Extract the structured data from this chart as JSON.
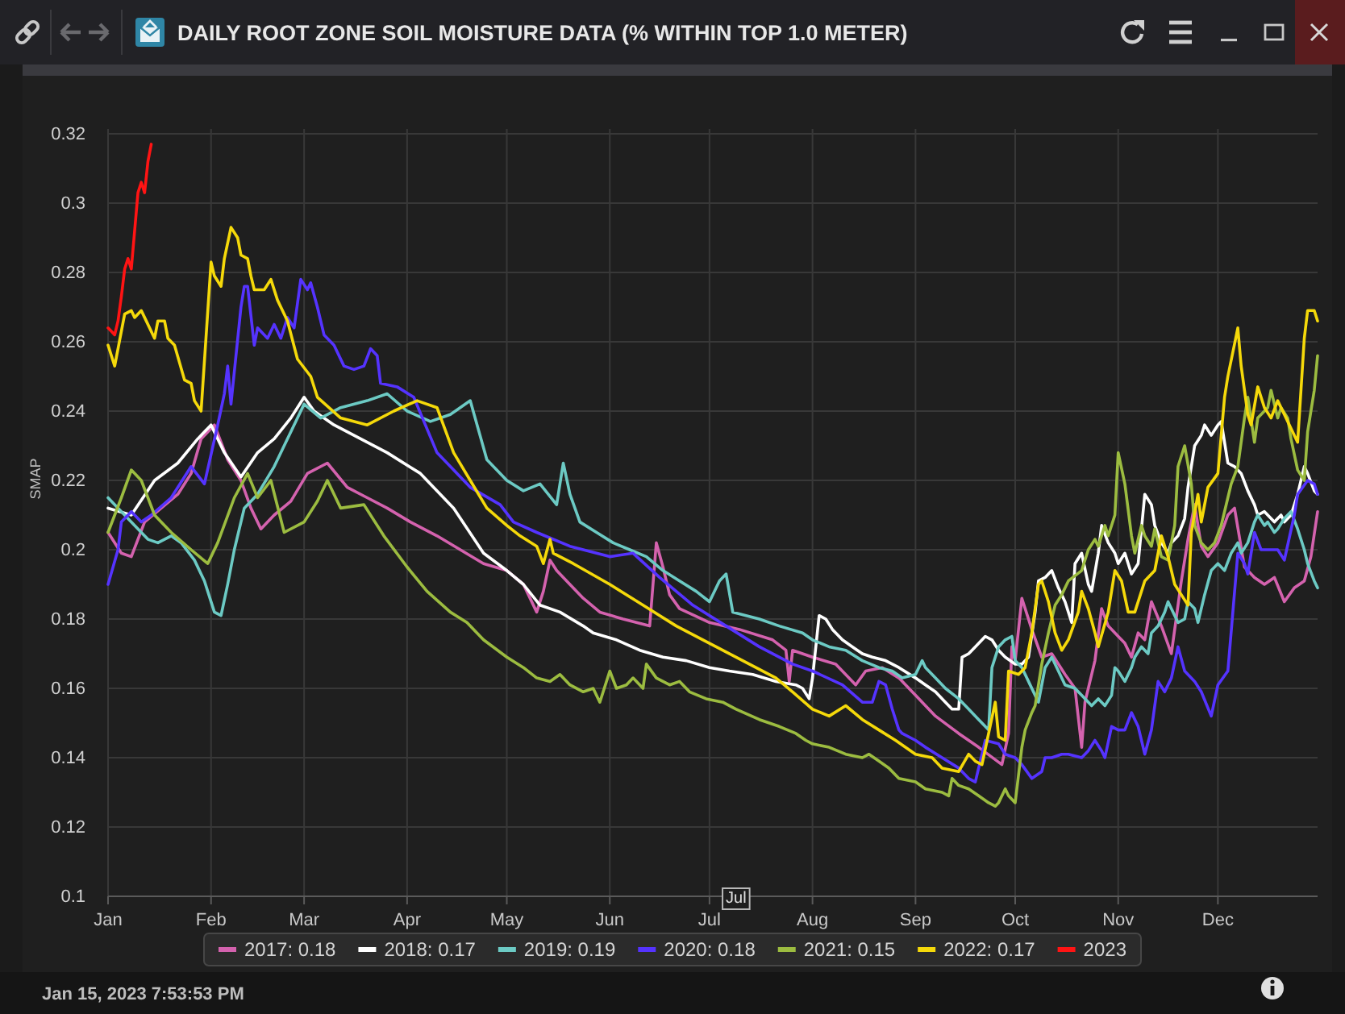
{
  "chart_data": {
    "type": "line",
    "title": "DAILY ROOT ZONE SOIL MOISTURE DATA (% WITHIN TOP 1.0 METER)",
    "ylabel": "SMAP",
    "annotations": [
      {
        "text": "Jul",
        "x": "--07-09"
      },
      "Jan 15, 2023 7:53:53 PM"
    ],
    "xlim": [
      "--01-01",
      "--12-31"
    ],
    "xticks": [
      {
        "value": "--01-01",
        "label": "Jan"
      },
      {
        "value": "--02-01",
        "label": "Feb"
      },
      {
        "value": "--03-01",
        "label": "Mar"
      },
      {
        "value": "--04-01",
        "label": "Apr"
      },
      {
        "value": "--05-01",
        "label": "May"
      },
      {
        "value": "--06-01",
        "label": "Jun"
      },
      {
        "value": "--07-01",
        "label": "Jul"
      },
      {
        "value": "--08-01",
        "label": "Aug"
      },
      {
        "value": "--09-01",
        "label": "Sep"
      },
      {
        "value": "--10-01",
        "label": "Oct"
      },
      {
        "value": "--11-01",
        "label": "Nov"
      },
      {
        "value": "--12-01",
        "label": "Dec"
      }
    ],
    "ylim": [
      0.1,
      0.32
    ],
    "yticks": [
      0.1,
      0.12,
      0.14,
      0.16,
      0.18,
      0.2,
      0.22,
      0.24,
      0.26,
      0.28,
      0.3,
      0.32
    ],
    "grid": true,
    "legend": "bottom",
    "series": [
      {
        "name": "2017: 0.18",
        "color": "#d462ae",
        "x": [
          "--01-01",
          "--01-05",
          "--01-08",
          "--01-12",
          "--01-17",
          "--01-22",
          "--01-26",
          "--01-29",
          "--02-02",
          "--02-06",
          "--02-10",
          "--02-13",
          "--02-16",
          "--02-20",
          "--02-25",
          "--03-02",
          "--03-08",
          "--03-14",
          "--03-20",
          "--03-26",
          "--04-02",
          "--04-10",
          "--04-17",
          "--04-24",
          "--05-01",
          "--05-06",
          "--05-10",
          "--05-12",
          "--05-14",
          "--05-16",
          "--05-19",
          "--05-24",
          "--05-29",
          "--06-05",
          "--06-13",
          "--06-15",
          "--06-17",
          "--06-19",
          "--06-22",
          "--07-01",
          "--07-10",
          "--07-20",
          "--07-24",
          "--07-25",
          "--07-26",
          "--08-01",
          "--08-08",
          "--08-14",
          "--08-17",
          "--08-22",
          "--08-27",
          "--09-01",
          "--09-07",
          "--09-14",
          "--09-20",
          "--09-27",
          "--09-29",
          "--09-30",
          "--10-01",
          "--10-03",
          "--10-06",
          "--10-09",
          "--10-12",
          "--10-16",
          "--10-19",
          "--10-21",
          "--10-22",
          "--10-25",
          "--10-27",
          "--10-29",
          "--11-01",
          "--11-03",
          "--11-05",
          "--11-07",
          "--11-09",
          "--11-11",
          "--11-14",
          "--11-17",
          "--11-20",
          "--11-22",
          "--11-24",
          "--11-26",
          "--11-28",
          "--12-01",
          "--12-04",
          "--12-06",
          "--12-09",
          "--12-12",
          "--12-15",
          "--12-18",
          "--12-21",
          "--12-24",
          "--12-27",
          "--12-29",
          "--12-31"
        ],
        "values": [
          0.205,
          0.199,
          0.198,
          0.208,
          0.212,
          0.216,
          0.222,
          0.232,
          0.236,
          0.226,
          0.22,
          0.212,
          0.206,
          0.21,
          0.214,
          0.222,
          0.225,
          0.218,
          0.215,
          0.212,
          0.208,
          0.204,
          0.2,
          0.196,
          0.194,
          0.19,
          0.182,
          0.188,
          0.197,
          0.194,
          0.191,
          0.186,
          0.182,
          0.18,
          0.178,
          0.202,
          0.195,
          0.187,
          0.183,
          0.179,
          0.177,
          0.174,
          0.171,
          0.162,
          0.171,
          0.169,
          0.167,
          0.161,
          0.165,
          0.166,
          0.163,
          0.158,
          0.152,
          0.147,
          0.143,
          0.138,
          0.147,
          0.172,
          0.168,
          0.186,
          0.177,
          0.169,
          0.17,
          0.164,
          0.16,
          0.143,
          0.156,
          0.168,
          0.183,
          0.178,
          0.175,
          0.173,
          0.169,
          0.176,
          0.174,
          0.185,
          0.178,
          0.17,
          0.191,
          0.203,
          0.213,
          0.201,
          0.198,
          0.202,
          0.21,
          0.212,
          0.195,
          0.192,
          0.19,
          0.192,
          0.185,
          0.189,
          0.191,
          0.198,
          0.211
        ]
      },
      {
        "name": "2018: 0.17",
        "color": "#ffffff",
        "x": [
          "--01-01",
          "--01-08",
          "--01-15",
          "--01-22",
          "--01-28",
          "--02-01",
          "--02-05",
          "--02-10",
          "--02-15",
          "--02-20",
          "--02-25",
          "--03-01",
          "--03-04",
          "--03-10",
          "--03-18",
          "--03-26",
          "--04-05",
          "--04-15",
          "--04-24",
          "--05-01",
          "--05-06",
          "--05-11",
          "--05-17",
          "--05-24",
          "--05-27",
          "--06-03",
          "--06-10",
          "--06-17",
          "--06-24",
          "--07-01",
          "--07-07",
          "--07-14",
          "--07-21",
          "--07-27",
          "--07-29",
          "--07-31",
          "--08-01",
          "--08-03",
          "--08-05",
          "--08-07",
          "--08-10",
          "--08-13",
          "--08-16",
          "--08-19",
          "--08-23",
          "--08-27",
          "--09-01",
          "--09-04",
          "--09-07",
          "--09-10",
          "--09-12",
          "--09-14",
          "--09-15",
          "--09-17",
          "--09-19",
          "--09-22",
          "--09-24",
          "--09-26",
          "--09-28",
          "--10-01",
          "--10-03",
          "--10-05",
          "--10-07",
          "--10-08",
          "--10-10",
          "--10-12",
          "--10-14",
          "--10-16",
          "--10-18",
          "--10-19",
          "--10-21",
          "--10-23",
          "--10-24",
          "--10-26",
          "--10-27",
          "--10-29",
          "--10-31",
          "--11-01",
          "--11-03",
          "--11-05",
          "--11-07",
          "--11-09",
          "--11-11",
          "--11-12",
          "--11-14",
          "--11-16",
          "--11-17",
          "--11-19",
          "--11-21",
          "--11-22",
          "--11-24",
          "--11-26",
          "--11-27",
          "--11-29",
          "--12-01",
          "--12-02",
          "--12-04",
          "--12-06",
          "--12-08",
          "--12-10",
          "--12-12",
          "--12-13",
          "--12-15",
          "--12-18",
          "--12-20",
          "--12-21",
          "--12-23",
          "--12-25",
          "--12-27",
          "--12-28",
          "--12-30",
          "--12-31"
        ],
        "values": [
          0.212,
          0.21,
          0.22,
          0.225,
          0.232,
          0.236,
          0.228,
          0.221,
          0.228,
          0.232,
          0.238,
          0.244,
          0.24,
          0.236,
          0.232,
          0.228,
          0.222,
          0.212,
          0.199,
          0.194,
          0.19,
          0.184,
          0.182,
          0.178,
          0.176,
          0.174,
          0.171,
          0.169,
          0.168,
          0.166,
          0.165,
          0.164,
          0.162,
          0.161,
          0.16,
          0.157,
          0.163,
          0.181,
          0.18,
          0.177,
          0.174,
          0.172,
          0.17,
          0.169,
          0.168,
          0.166,
          0.163,
          0.161,
          0.159,
          0.156,
          0.154,
          0.154,
          0.169,
          0.17,
          0.172,
          0.175,
          0.174,
          0.171,
          0.169,
          0.167,
          0.167,
          0.169,
          0.182,
          0.191,
          0.192,
          0.194,
          0.189,
          0.185,
          0.179,
          0.196,
          0.199,
          0.19,
          0.188,
          0.199,
          0.207,
          0.202,
          0.199,
          0.196,
          0.199,
          0.193,
          0.196,
          0.216,
          0.213,
          0.207,
          0.202,
          0.199,
          0.202,
          0.204,
          0.209,
          0.218,
          0.23,
          0.233,
          0.236,
          0.233,
          0.236,
          0.237,
          0.225,
          0.224,
          0.222,
          0.217,
          0.213,
          0.21,
          0.211,
          0.208,
          0.21,
          0.208,
          0.21,
          0.216,
          0.224,
          0.222,
          0.217,
          0.216
        ]
      },
      {
        "name": "2019: 0.19",
        "color": "#6ccac4",
        "x": [
          "--01-01",
          "--01-06",
          "--01-11",
          "--01-13",
          "--01-16",
          "--01-20",
          "--01-23",
          "--01-27",
          "--01-30",
          "--02-02",
          "--02-04",
          "--02-06",
          "--02-08",
          "--02-11",
          "--02-15",
          "--02-20",
          "--02-26",
          "--03-01",
          "--03-06",
          "--03-12",
          "--03-20",
          "--03-26",
          "--04-01",
          "--04-08",
          "--04-14",
          "--04-20",
          "--04-25",
          "--05-01",
          "--05-06",
          "--05-11",
          "--05-16",
          "--05-18",
          "--05-20",
          "--05-23",
          "--05-28",
          "--06-02",
          "--06-07",
          "--06-12",
          "--06-17",
          "--06-22",
          "--06-27",
          "--07-01",
          "--07-04",
          "--07-06",
          "--07-08",
          "--07-12",
          "--07-16",
          "--07-22",
          "--07-29",
          "--08-01",
          "--08-06",
          "--08-11",
          "--08-16",
          "--08-21",
          "--08-25",
          "--08-28",
          "--09-01",
          "--09-03",
          "--09-04",
          "--09-07",
          "--09-10",
          "--09-14",
          "--09-17",
          "--09-20",
          "--09-23",
          "--09-24",
          "--09-26",
          "--09-28",
          "--09-30",
          "--10-01",
          "--10-03",
          "--10-05",
          "--10-08",
          "--10-10",
          "--10-12",
          "--10-14",
          "--10-16",
          "--10-19",
          "--10-21",
          "--10-24",
          "--10-26",
          "--10-28",
          "--10-30",
          "--10-31",
          "--11-01",
          "--11-03",
          "--11-05",
          "--11-06",
          "--11-08",
          "--11-10",
          "--11-11",
          "--11-13",
          "--11-15",
          "--11-16",
          "--11-19",
          "--11-21",
          "--11-22",
          "--11-24",
          "--11-25",
          "--11-27",
          "--11-29",
          "--12-01",
          "--12-03",
          "--12-05",
          "--12-07",
          "--12-08",
          "--12-10",
          "--12-12",
          "--12-13",
          "--12-15",
          "--12-16",
          "--12-18",
          "--12-19",
          "--12-21",
          "--12-23",
          "--12-25",
          "--12-27",
          "--12-28",
          "--12-30",
          "--12-31"
        ],
        "values": [
          0.215,
          0.21,
          0.205,
          0.203,
          0.202,
          0.204,
          0.202,
          0.197,
          0.191,
          0.182,
          0.181,
          0.19,
          0.2,
          0.212,
          0.216,
          0.224,
          0.236,
          0.242,
          0.238,
          0.241,
          0.243,
          0.245,
          0.24,
          0.237,
          0.239,
          0.243,
          0.226,
          0.22,
          0.217,
          0.219,
          0.213,
          0.225,
          0.216,
          0.208,
          0.205,
          0.202,
          0.2,
          0.198,
          0.194,
          0.191,
          0.188,
          0.185,
          0.191,
          0.193,
          0.182,
          0.181,
          0.18,
          0.178,
          0.176,
          0.174,
          0.172,
          0.171,
          0.168,
          0.166,
          0.165,
          0.163,
          0.164,
          0.168,
          0.166,
          0.163,
          0.16,
          0.157,
          0.154,
          0.151,
          0.148,
          0.166,
          0.172,
          0.174,
          0.175,
          0.168,
          0.166,
          0.162,
          0.156,
          0.166,
          0.169,
          0.165,
          0.161,
          0.16,
          0.158,
          0.155,
          0.157,
          0.155,
          0.158,
          0.166,
          0.165,
          0.162,
          0.166,
          0.169,
          0.172,
          0.17,
          0.176,
          0.178,
          0.182,
          0.185,
          0.179,
          0.18,
          0.185,
          0.183,
          0.179,
          0.187,
          0.194,
          0.196,
          0.194,
          0.199,
          0.202,
          0.199,
          0.202,
          0.208,
          0.21,
          0.207,
          0.208,
          0.205,
          0.206,
          0.209,
          0.211,
          0.206,
          0.2,
          0.196,
          0.191,
          0.189
        ]
      },
      {
        "name": "2020: 0.18",
        "color": "#5533ff",
        "x": [
          "--01-01",
          "--01-04",
          "--01-05",
          "--01-08",
          "--01-11",
          "--01-14",
          "--01-20",
          "--01-26",
          "--01-30",
          "--02-03",
          "--02-05",
          "--02-06",
          "--02-07",
          "--02-10",
          "--02-11",
          "--02-12",
          "--02-14",
          "--02-15",
          "--02-18",
          "--02-20",
          "--02-22",
          "--02-24",
          "--02-26",
          "--02-28",
          "--03-02",
          "--03-03",
          "--03-05",
          "--03-07",
          "--03-10",
          "--03-13",
          "--03-16",
          "--03-19",
          "--03-21",
          "--03-23",
          "--03-24",
          "--03-29",
          "--04-03",
          "--04-10",
          "--04-20",
          "--04-29",
          "--05-03",
          "--05-10",
          "--05-20",
          "--06-01",
          "--06-08",
          "--06-16",
          "--06-26",
          "--07-06",
          "--07-16",
          "--07-26",
          "--08-01",
          "--08-10",
          "--08-16",
          "--08-19",
          "--08-21",
          "--08-23",
          "--08-25",
          "--08-27",
          "--08-28",
          "--09-01",
          "--09-04",
          "--09-09",
          "--09-14",
          "--09-17",
          "--09-19",
          "--09-20",
          "--09-22",
          "--09-26",
          "--09-28",
          "--10-01",
          "--10-03",
          "--10-06",
          "--10-09",
          "--10-10",
          "--10-12",
          "--10-15",
          "--10-17",
          "--10-21",
          "--10-23",
          "--10-25",
          "--10-27",
          "--10-28",
          "--10-30",
          "--11-01",
          "--11-03",
          "--11-05",
          "--11-07",
          "--11-09",
          "--11-11",
          "--11-13",
          "--11-15",
          "--11-17",
          "--11-19",
          "--11-21",
          "--11-24",
          "--11-26",
          "--11-29",
          "--12-01",
          "--12-04",
          "--12-07",
          "--12-09",
          "--12-10",
          "--12-12",
          "--12-14",
          "--12-16",
          "--12-19",
          "--12-21",
          "--12-24",
          "--12-25",
          "--12-28",
          "--12-30",
          "--12-31"
        ],
        "values": [
          0.19,
          0.2,
          0.208,
          0.211,
          0.208,
          0.21,
          0.215,
          0.224,
          0.219,
          0.236,
          0.245,
          0.253,
          0.242,
          0.27,
          0.276,
          0.276,
          0.259,
          0.264,
          0.261,
          0.265,
          0.261,
          0.267,
          0.264,
          0.278,
          0.275,
          0.277,
          0.27,
          0.262,
          0.259,
          0.253,
          0.252,
          0.253,
          0.258,
          0.256,
          0.248,
          0.247,
          0.244,
          0.228,
          0.218,
          0.213,
          0.208,
          0.205,
          0.201,
          0.198,
          0.199,
          0.192,
          0.184,
          0.178,
          0.172,
          0.167,
          0.165,
          0.161,
          0.156,
          0.156,
          0.162,
          0.161,
          0.154,
          0.148,
          0.147,
          0.145,
          0.143,
          0.14,
          0.137,
          0.134,
          0.133,
          0.137,
          0.145,
          0.144,
          0.141,
          0.14,
          0.138,
          0.134,
          0.136,
          0.14,
          0.14,
          0.141,
          0.141,
          0.14,
          0.142,
          0.145,
          0.142,
          0.14,
          0.149,
          0.148,
          0.148,
          0.153,
          0.149,
          0.141,
          0.148,
          0.162,
          0.159,
          0.163,
          0.172,
          0.165,
          0.162,
          0.159,
          0.152,
          0.161,
          0.165,
          0.199,
          0.196,
          0.193,
          0.205,
          0.2,
          0.2,
          0.2,
          0.197,
          0.21,
          0.216,
          0.22,
          0.219,
          0.216
        ]
      },
      {
        "name": "2021: 0.15",
        "color": "#9cbc40",
        "x": [
          "--01-01",
          "--01-05",
          "--01-08",
          "--01-11",
          "--01-15",
          "--01-20",
          "--01-26",
          "--01-31",
          "--02-03",
          "--02-08",
          "--02-12",
          "--02-15",
          "--02-19",
          "--02-23",
          "--03-01",
          "--03-05",
          "--03-08",
          "--03-12",
          "--03-19",
          "--03-25",
          "--04-01",
          "--04-07",
          "--04-14",
          "--04-19",
          "--04-24",
          "--05-01",
          "--05-06",
          "--05-10",
          "--05-14",
          "--05-17",
          "--05-20",
          "--05-24",
          "--05-27",
          "--05-29",
          "--06-01",
          "--06-03",
          "--06-06",
          "--06-08",
          "--06-11",
          "--06-12",
          "--06-15",
          "--06-19",
          "--06-22",
          "--06-25",
          "--06-30",
          "--07-05",
          "--07-09",
          "--07-16",
          "--07-22",
          "--07-27",
          "--07-30",
          "--08-01",
          "--08-06",
          "--08-11",
          "--08-16",
          "--08-18",
          "--08-21",
          "--08-24",
          "--08-27",
          "--09-01",
          "--09-04",
          "--09-09",
          "--09-11",
          "--09-12",
          "--09-14",
          "--09-17",
          "--09-20",
          "--09-23",
          "--09-25",
          "--09-26",
          "--09-28",
          "--09-29",
          "--10-01",
          "--10-03",
          "--10-04",
          "--10-06",
          "--10-07",
          "--10-09",
          "--10-11",
          "--10-13",
          "--10-15",
          "--10-17",
          "--10-21",
          "--10-23",
          "--10-25",
          "--10-26",
          "--10-28",
          "--10-29",
          "--10-31",
          "--11-01",
          "--11-03",
          "--11-05",
          "--11-06",
          "--11-08",
          "--11-09",
          "--11-11",
          "--11-12",
          "--11-14",
          "--11-16",
          "--11-18",
          "--11-19",
          "--11-21",
          "--11-23",
          "--11-24",
          "--11-26",
          "--11-28",
          "--11-30",
          "--12-02",
          "--12-04",
          "--12-05",
          "--12-07",
          "--12-09",
          "--12-10",
          "--12-12",
          "--12-13",
          "--12-16",
          "--12-17",
          "--12-19",
          "--12-20",
          "--12-22",
          "--12-23",
          "--12-25",
          "--12-27",
          "--12-28",
          "--12-30",
          "--12-31"
        ],
        "values": [
          0.205,
          0.215,
          0.223,
          0.22,
          0.21,
          0.205,
          0.2,
          0.196,
          0.202,
          0.215,
          0.222,
          0.215,
          0.22,
          0.205,
          0.208,
          0.214,
          0.22,
          0.212,
          0.213,
          0.204,
          0.195,
          0.188,
          0.182,
          0.179,
          0.174,
          0.169,
          0.166,
          0.163,
          0.162,
          0.164,
          0.161,
          0.159,
          0.16,
          0.156,
          0.165,
          0.16,
          0.161,
          0.163,
          0.16,
          0.167,
          0.163,
          0.161,
          0.162,
          0.159,
          0.157,
          0.156,
          0.154,
          0.151,
          0.149,
          0.147,
          0.145,
          0.144,
          0.143,
          0.141,
          0.14,
          0.141,
          0.139,
          0.137,
          0.134,
          0.133,
          0.131,
          0.13,
          0.129,
          0.134,
          0.132,
          0.131,
          0.129,
          0.127,
          0.126,
          0.127,
          0.131,
          0.129,
          0.127,
          0.143,
          0.148,
          0.153,
          0.155,
          0.167,
          0.176,
          0.184,
          0.187,
          0.191,
          0.194,
          0.2,
          0.203,
          0.201,
          0.207,
          0.204,
          0.21,
          0.228,
          0.219,
          0.204,
          0.199,
          0.207,
          0.204,
          0.201,
          0.206,
          0.198,
          0.197,
          0.207,
          0.224,
          0.23,
          0.219,
          0.207,
          0.202,
          0.2,
          0.202,
          0.207,
          0.215,
          0.219,
          0.224,
          0.238,
          0.244,
          0.231,
          0.238,
          0.241,
          0.246,
          0.238,
          0.241,
          0.238,
          0.232,
          0.223,
          0.22,
          0.234,
          0.246,
          0.256
        ]
      },
      {
        "name": "2022: 0.17",
        "color": "#f5d90a",
        "x": [
          "--01-01",
          "--01-03",
          "--01-06",
          "--01-08",
          "--01-09",
          "--01-11",
          "--01-12",
          "--01-15",
          "--01-16",
          "--01-18",
          "--01-19",
          "--01-21",
          "--01-24",
          "--01-26",
          "--01-27",
          "--01-29",
          "--02-01",
          "--02-02",
          "--02-04",
          "--02-05",
          "--02-07",
          "--02-09",
          "--02-10",
          "--02-12",
          "--02-13",
          "--02-14",
          "--02-17",
          "--02-19",
          "--02-21",
          "--02-24",
          "--02-27",
          "--03-03",
          "--03-05",
          "--03-12",
          "--03-20",
          "--03-28",
          "--04-04",
          "--04-10",
          "--04-15",
          "--04-20",
          "--04-25",
          "--05-01",
          "--05-05",
          "--05-10",
          "--05-12",
          "--05-14",
          "--05-15",
          "--05-21",
          "--06-01",
          "--06-11",
          "--06-21",
          "--07-01",
          "--07-11",
          "--07-21",
          "--07-26",
          "--08-01",
          "--08-06",
          "--08-11",
          "--08-16",
          "--08-21",
          "--08-26",
          "--09-01",
          "--09-06",
          "--09-09",
          "--09-14",
          "--09-17",
          "--09-19",
          "--09-21",
          "--09-23",
          "--09-25",
          "--09-26",
          "--09-28",
          "--09-29",
          "--10-02",
          "--10-04",
          "--10-06",
          "--10-08",
          "--10-09",
          "--10-11",
          "--10-13",
          "--10-15",
          "--10-17",
          "--10-20",
          "--10-21",
          "--10-23",
          "--10-25",
          "--10-26",
          "--10-29",
          "--10-31",
          "--11-02",
          "--11-04",
          "--11-06",
          "--11-09",
          "--11-12",
          "--11-14",
          "--11-16",
          "--11-18",
          "--11-20",
          "--11-22",
          "--11-23",
          "--11-25",
          "--11-26",
          "--11-28",
          "--12-01",
          "--12-03",
          "--12-04",
          "--12-07",
          "--12-08",
          "--12-10",
          "--12-11",
          "--12-13",
          "--12-15",
          "--12-17",
          "--12-19",
          "--12-21",
          "--12-23",
          "--12-25",
          "--12-27",
          "--12-28",
          "--12-30",
          "--12-31"
        ],
        "values": [
          0.259,
          0.253,
          0.268,
          0.269,
          0.267,
          0.269,
          0.267,
          0.261,
          0.266,
          0.266,
          0.261,
          0.259,
          0.249,
          0.248,
          0.243,
          0.24,
          0.283,
          0.279,
          0.276,
          0.284,
          0.293,
          0.29,
          0.285,
          0.284,
          0.279,
          0.275,
          0.275,
          0.278,
          0.272,
          0.266,
          0.255,
          0.25,
          0.244,
          0.238,
          0.236,
          0.24,
          0.243,
          0.241,
          0.228,
          0.22,
          0.212,
          0.207,
          0.204,
          0.201,
          0.196,
          0.203,
          0.199,
          0.196,
          0.19,
          0.184,
          0.178,
          0.173,
          0.168,
          0.163,
          0.159,
          0.154,
          0.152,
          0.155,
          0.151,
          0.148,
          0.145,
          0.141,
          0.14,
          0.137,
          0.136,
          0.141,
          0.139,
          0.138,
          0.147,
          0.156,
          0.146,
          0.145,
          0.165,
          0.164,
          0.166,
          0.176,
          0.19,
          0.191,
          0.185,
          0.176,
          0.171,
          0.174,
          0.182,
          0.188,
          0.183,
          0.176,
          0.172,
          0.182,
          0.194,
          0.191,
          0.182,
          0.182,
          0.191,
          0.194,
          0.204,
          0.198,
          0.19,
          0.187,
          0.184,
          0.205,
          0.216,
          0.208,
          0.218,
          0.222,
          0.244,
          0.25,
          0.264,
          0.253,
          0.239,
          0.236,
          0.247,
          0.241,
          0.238,
          0.243,
          0.239,
          0.235,
          0.231,
          0.261,
          0.269,
          0.269,
          0.266
        ]
      },
      {
        "name": "2023",
        "color": "#ff1414",
        "x": [
          "--01-01",
          "--01-02",
          "--01-03",
          "--01-04",
          "--01-05",
          "--01-06",
          "--01-07",
          "--01-08",
          "--01-09",
          "--01-10",
          "--01-11",
          "--01-12",
          "--01-13",
          "--01-14"
        ],
        "values": [
          0.264,
          0.263,
          0.262,
          0.266,
          0.273,
          0.281,
          0.284,
          0.281,
          0.292,
          0.303,
          0.306,
          0.303,
          0.312,
          0.317
        ]
      }
    ]
  }
}
